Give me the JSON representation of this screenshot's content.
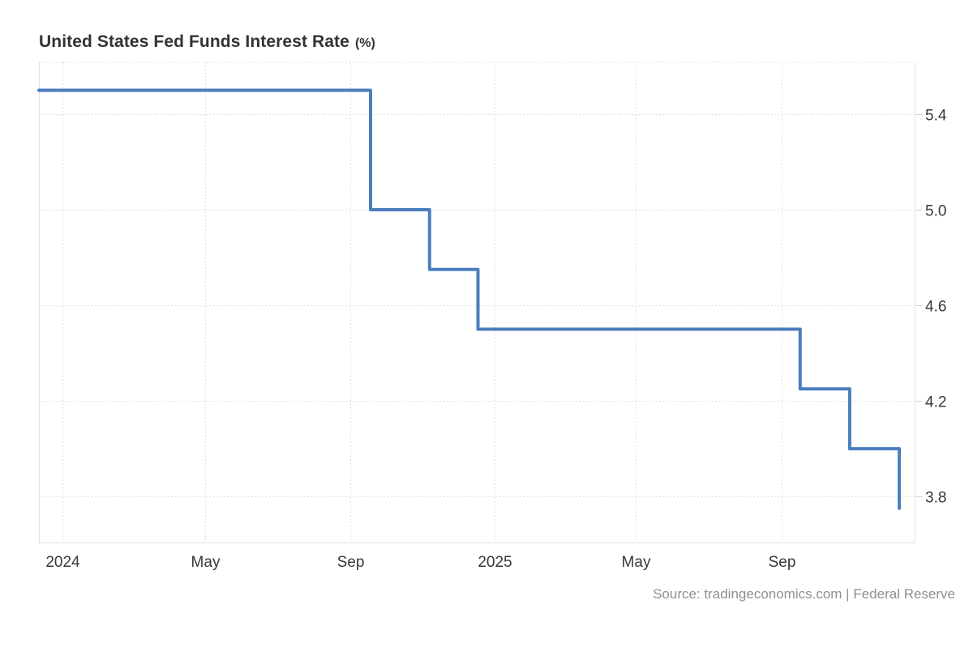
{
  "header": {
    "title": "United States Fed Funds Interest Rate",
    "title_suffix": "(%)"
  },
  "footer": {
    "source_text": "Source: tradingeconomics.com | Federal Reserve"
  },
  "chart_data": {
    "type": "line",
    "subtype": "step-after",
    "title": "United States Fed Funds Interest Rate (%)",
    "ylabel": "",
    "xlabel": "",
    "grid": "dotted",
    "legend": "none",
    "series": [
      {
        "name": "Fed Funds Interest Rate",
        "points": [
          {
            "date": "2023-12-12",
            "value": 5.5
          },
          {
            "date": "2024-09-18",
            "value": 5.0
          },
          {
            "date": "2024-11-07",
            "value": 4.75
          },
          {
            "date": "2024-12-18",
            "value": 4.5
          },
          {
            "date": "2025-09-17",
            "value": 4.25
          },
          {
            "date": "2025-10-29",
            "value": 4.0
          },
          {
            "date": "2025-12-10",
            "value": 3.75
          }
        ]
      }
    ],
    "x_domain": [
      "2023-12-12",
      "2025-12-23"
    ],
    "y_domain": [
      3.607,
      5.617
    ],
    "x_ticks": [
      {
        "date": "2024-01-01",
        "label": "2024"
      },
      {
        "date": "2024-05-01",
        "label": "May"
      },
      {
        "date": "2024-09-01",
        "label": "Sep"
      },
      {
        "date": "2025-01-01",
        "label": "2025"
      },
      {
        "date": "2025-05-01",
        "label": "May"
      },
      {
        "date": "2025-09-01",
        "label": "Sep"
      }
    ],
    "y_ticks": [
      {
        "value": 5.4,
        "label": "5.4"
      },
      {
        "value": 5.0,
        "label": "5.0"
      },
      {
        "value": 4.6,
        "label": "4.6"
      },
      {
        "value": 4.2,
        "label": "4.2"
      },
      {
        "value": 3.8,
        "label": "3.8"
      }
    ],
    "colors": {
      "line": "#4b7ebd",
      "grid": "#d7d7d7",
      "border": "#e2e2e2",
      "tick": "#d2d2d2",
      "tick_text": "#383838"
    },
    "line_width": 4
  }
}
